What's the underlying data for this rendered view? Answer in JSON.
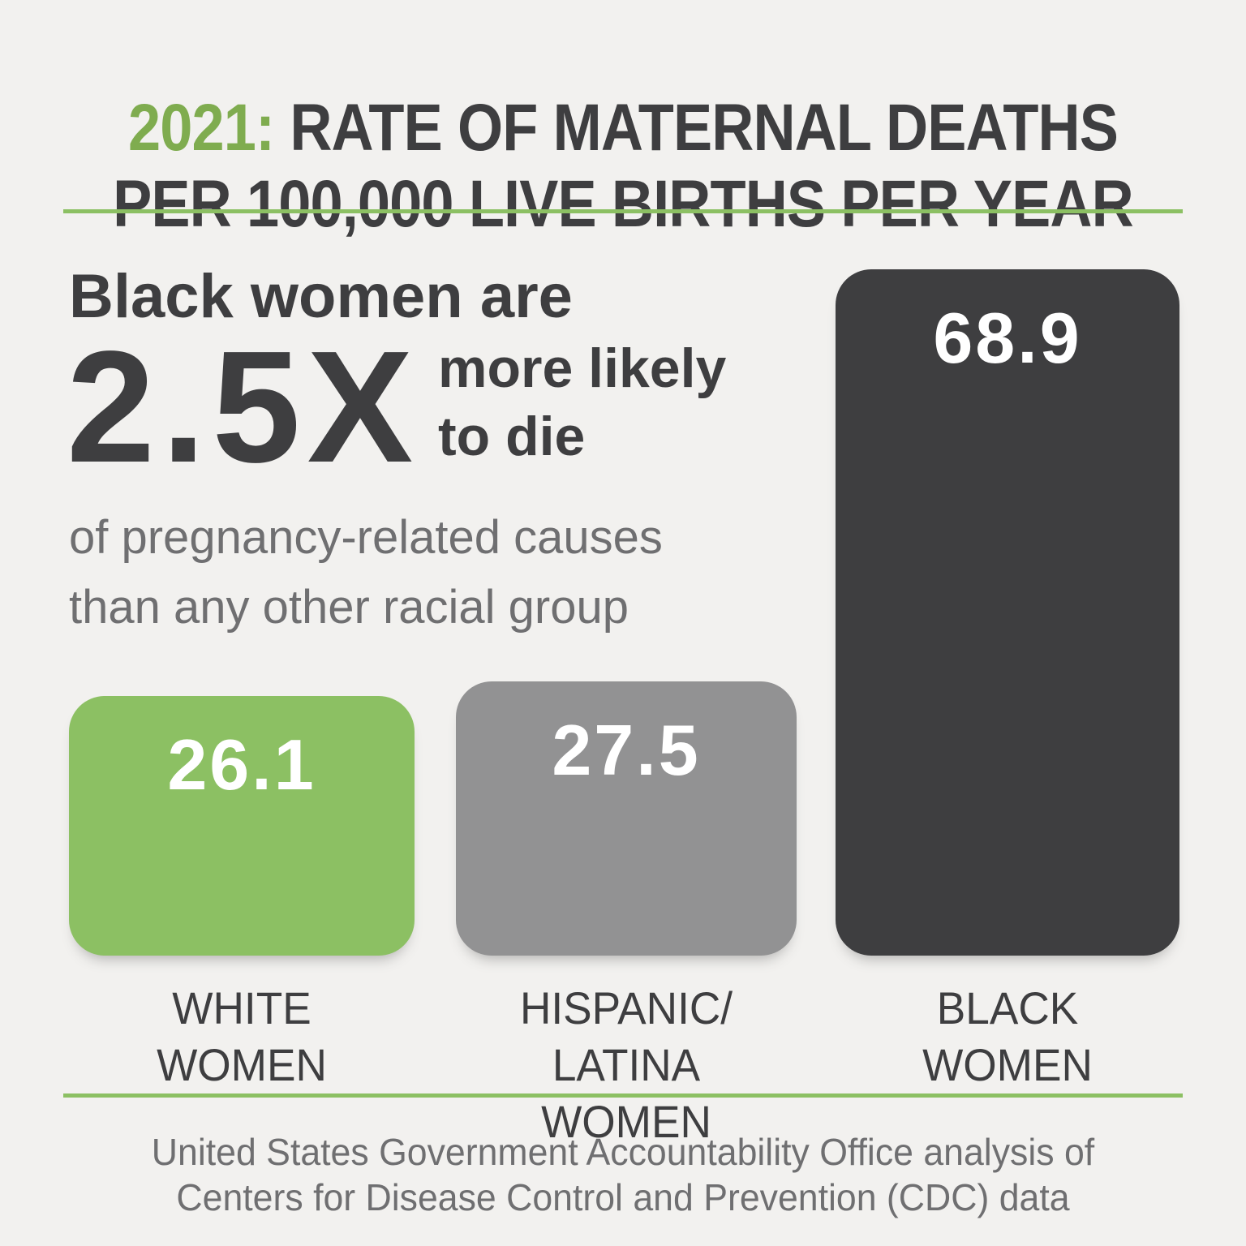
{
  "title": {
    "line1_year": "2021:",
    "line1_rest": " RATE OF MATERNAL DEATHS",
    "line2": "PER 100,000 LIVE BIRTHS PER YEAR"
  },
  "callout": {
    "intro": "Black women are",
    "multiplier": "2.5X",
    "emphasis_line1": "more likely",
    "emphasis_line2": "to die",
    "detail_line1": "of pregnancy-related causes",
    "detail_line2": "than any other racial group"
  },
  "bars": [
    {
      "value": "26.1",
      "label_line1": "WHITE",
      "label_line2": "WOMEN",
      "color": "#8CC063"
    },
    {
      "value": "27.5",
      "label_line1": "HISPANIC/",
      "label_line2": "LATINA WOMEN",
      "color": "#929293"
    },
    {
      "value": "68.9",
      "label_line1": "BLACK",
      "label_line2": "WOMEN",
      "color": "#3E3E40"
    }
  ],
  "footer": {
    "line1": "United States Government Accountability Office analysis of",
    "line2": "Centers for Disease Control and Prevention (CDC) data"
  },
  "colors": {
    "accent_green": "#8CC063",
    "title_green": "#7FAC4F",
    "dark": "#3E3E40",
    "gray_text": "#6F6F71",
    "background": "#F2F1EF"
  },
  "chart_data": {
    "type": "bar",
    "title": "2021: RATE OF MATERNAL DEATHS PER 100,000 LIVE BIRTHS PER YEAR",
    "categories": [
      "WHITE WOMEN",
      "HISPANIC/LATINA WOMEN",
      "BLACK WOMEN"
    ],
    "values": [
      26.1,
      27.5,
      68.9
    ],
    "unit": "maternal deaths per 100,000 live births per year",
    "ylim": [
      0,
      68.9
    ],
    "bar_colors": [
      "#8CC063",
      "#929293",
      "#3E3E40"
    ],
    "data_labels": [
      "26.1",
      "27.5",
      "68.9"
    ],
    "annotation": "Black women are 2.5X more likely to die of pregnancy-related causes than any other racial group",
    "source": "United States Government Accountability Office analysis of Centers for Disease Control and Prevention (CDC) data",
    "legend": false,
    "grid": false
  }
}
